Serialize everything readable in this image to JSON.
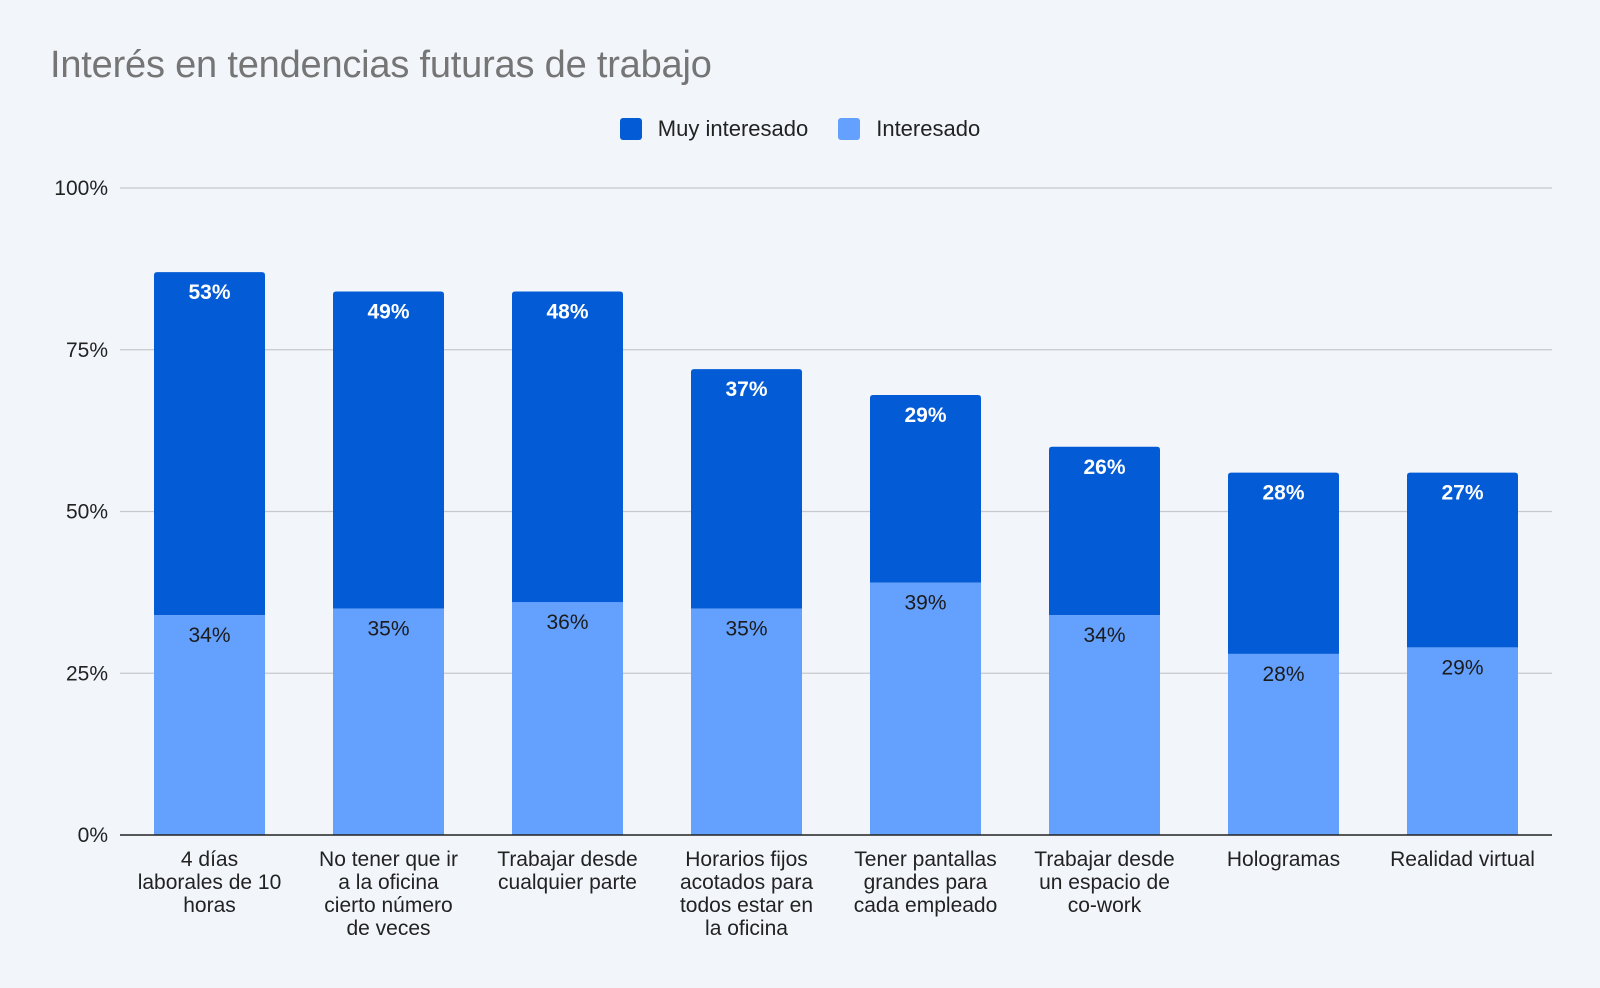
{
  "chart_data": {
    "type": "bar",
    "stacked": true,
    "title": "Interés en tendencias futuras de trabajo",
    "xlabel": "",
    "ylabel": "",
    "ylim": [
      0,
      100
    ],
    "yticks": [
      "0%",
      "25%",
      "50%",
      "75%",
      "100%"
    ],
    "ytick_values": [
      0,
      25,
      50,
      75,
      100
    ],
    "grid": true,
    "legend_position": "top-center",
    "categories": [
      [
        "4 días",
        "laborales de 10",
        "horas"
      ],
      [
        "No tener que ir",
        "a la oficina",
        "cierto número",
        "de veces"
      ],
      [
        "Trabajar desde",
        "cualquier parte"
      ],
      [
        "Horarios fijos",
        "acotados para",
        "todos estar en",
        "la oficina"
      ],
      [
        "Tener pantallas",
        "grandes para",
        "cada empleado"
      ],
      [
        "Trabajar desde",
        "un espacio de",
        "co-work"
      ],
      [
        "Hologramas"
      ],
      [
        "Realidad virtual"
      ]
    ],
    "series": [
      {
        "name": "Interesado",
        "color": "#64a0fd",
        "label_color": "#1b1b1b",
        "values": [
          34,
          35,
          36,
          35,
          39,
          34,
          28,
          29
        ],
        "labels": [
          "34%",
          "35%",
          "36%",
          "35%",
          "39%",
          "34%",
          "28%",
          "29%"
        ]
      },
      {
        "name": "Muy interesado",
        "color": "#035bd6",
        "label_color": "#ffffff",
        "values": [
          53,
          49,
          48,
          37,
          29,
          26,
          28,
          27
        ],
        "labels": [
          "53%",
          "49%",
          "48%",
          "37%",
          "29%",
          "26%",
          "28%",
          "27%"
        ]
      }
    ],
    "legend": [
      {
        "name": "Muy interesado",
        "color": "#035bd6"
      },
      {
        "name": "Interesado",
        "color": "#64a0fd"
      }
    ]
  }
}
